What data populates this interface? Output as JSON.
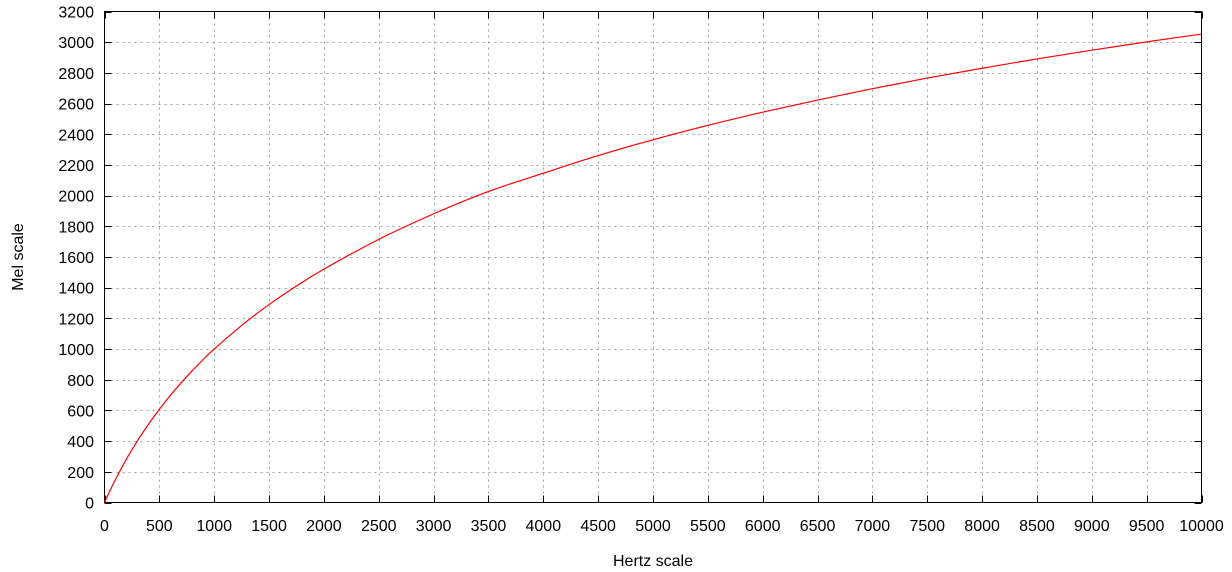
{
  "chart_data": {
    "type": "line",
    "xlabel": "Hertz scale",
    "ylabel": "Mel scale",
    "xlim": [
      0,
      10000
    ],
    "ylim": [
      0,
      3200
    ],
    "x_ticks": [
      0,
      500,
      1000,
      1500,
      2000,
      2500,
      3000,
      3500,
      4000,
      4500,
      5000,
      5500,
      6000,
      6500,
      7000,
      7500,
      8000,
      8500,
      9000,
      9500,
      10000
    ],
    "y_ticks": [
      0,
      200,
      400,
      600,
      800,
      1000,
      1200,
      1400,
      1600,
      1800,
      2000,
      2200,
      2400,
      2600,
      2800,
      3000,
      3200
    ],
    "grid": true,
    "legend": "none",
    "series": [
      {
        "color": "#ff0000",
        "x": [
          0,
          50,
          100,
          200,
          300,
          400,
          500,
          600,
          700,
          800,
          900,
          1000,
          1250,
          1500,
          1750,
          2000,
          2500,
          3000,
          3500,
          4000,
          4500,
          5000,
          5500,
          6000,
          6500,
          7000,
          7500,
          8000,
          8500,
          9000,
          9500,
          10000
        ],
        "y": [
          0,
          78,
          150,
          283,
          402,
          509,
          607,
          698,
          781,
          859,
          932,
          1000,
          1154,
          1290,
          1411,
          1521,
          1715,
          1881,
          2027,
          2146,
          2261,
          2364,
          2458,
          2544,
          2623,
          2697,
          2766,
          2830,
          2891,
          2948,
          3002,
          3053
        ]
      }
    ]
  }
}
